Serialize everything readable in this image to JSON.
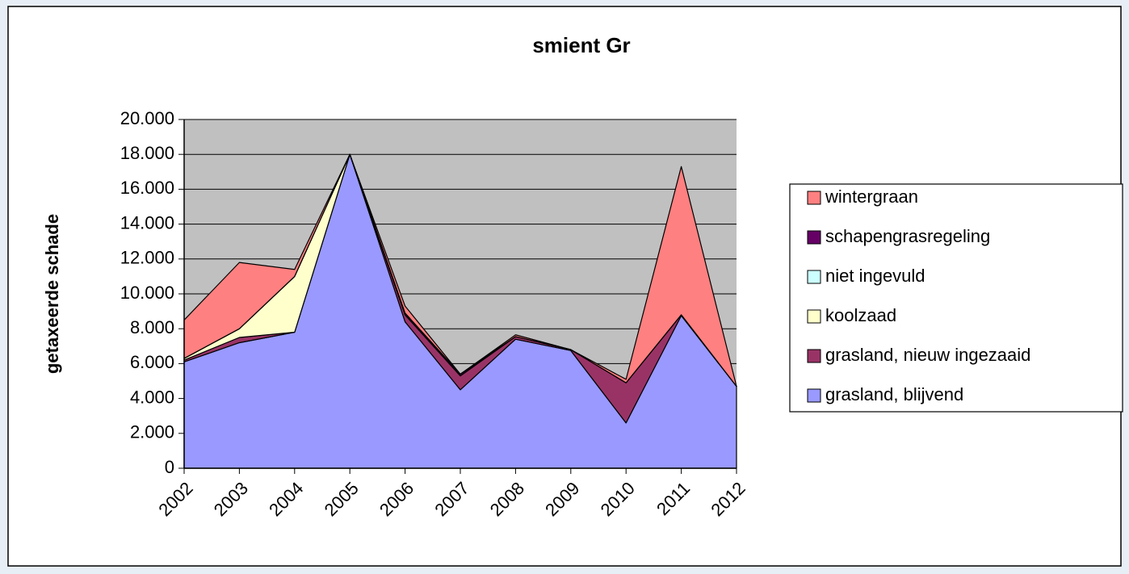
{
  "chart_data": {
    "type": "area",
    "stacked": true,
    "title": "smient Gr",
    "ylabel": "getaxeerde schade",
    "categories": [
      "2002",
      "2003",
      "2004",
      "2005",
      "2006",
      "2007",
      "2008",
      "2009",
      "2010",
      "2011",
      "2012"
    ],
    "series": [
      {
        "name": "grasland, blijvend",
        "color": "#9999ff",
        "values": [
          6100,
          7200,
          7800,
          18000,
          8400,
          4500,
          7400,
          6750,
          2600,
          8750,
          4700
        ]
      },
      {
        "name": "grasland, nieuw ingezaaid",
        "color": "#993366",
        "values": [
          100,
          300,
          0,
          0,
          400,
          800,
          150,
          50,
          2300,
          50,
          0
        ]
      },
      {
        "name": "koolzaad",
        "color": "#ffffcc",
        "values": [
          100,
          500,
          3200,
          0,
          0,
          0,
          0,
          0,
          0,
          0,
          0
        ]
      },
      {
        "name": "niet ingevuld",
        "color": "#ccffff",
        "values": [
          0,
          0,
          0,
          0,
          0,
          0,
          0,
          0,
          0,
          0,
          0
        ]
      },
      {
        "name": "schapengrasregeling",
        "color": "#660066",
        "values": [
          0,
          0,
          0,
          0,
          100,
          100,
          0,
          0,
          0,
          0,
          0
        ]
      },
      {
        "name": "wintergraan",
        "color": "#ff8080",
        "values": [
          2200,
          3800,
          400,
          0,
          400,
          0,
          100,
          0,
          200,
          8500,
          0
        ]
      }
    ],
    "ylim": [
      0,
      20000
    ],
    "yticks": [
      0,
      {
        "value": 2000,
        "label": "2.000"
      },
      {
        "value": 4000,
        "label": "4.000"
      },
      {
        "value": 6000,
        "label": "6.000"
      },
      {
        "value": 8000,
        "label": "8.000"
      },
      {
        "value": 10000,
        "label": "10.000"
      },
      {
        "value": 12000,
        "label": "12.000"
      },
      {
        "value": 14000,
        "label": "14.000"
      },
      {
        "value": 16000,
        "label": "16.000"
      },
      {
        "value": 18000,
        "label": "18.000"
      },
      {
        "value": 20000,
        "label": "20.000"
      }
    ],
    "grid": true,
    "plot_background": "#c0c0c0",
    "legend": "right"
  }
}
